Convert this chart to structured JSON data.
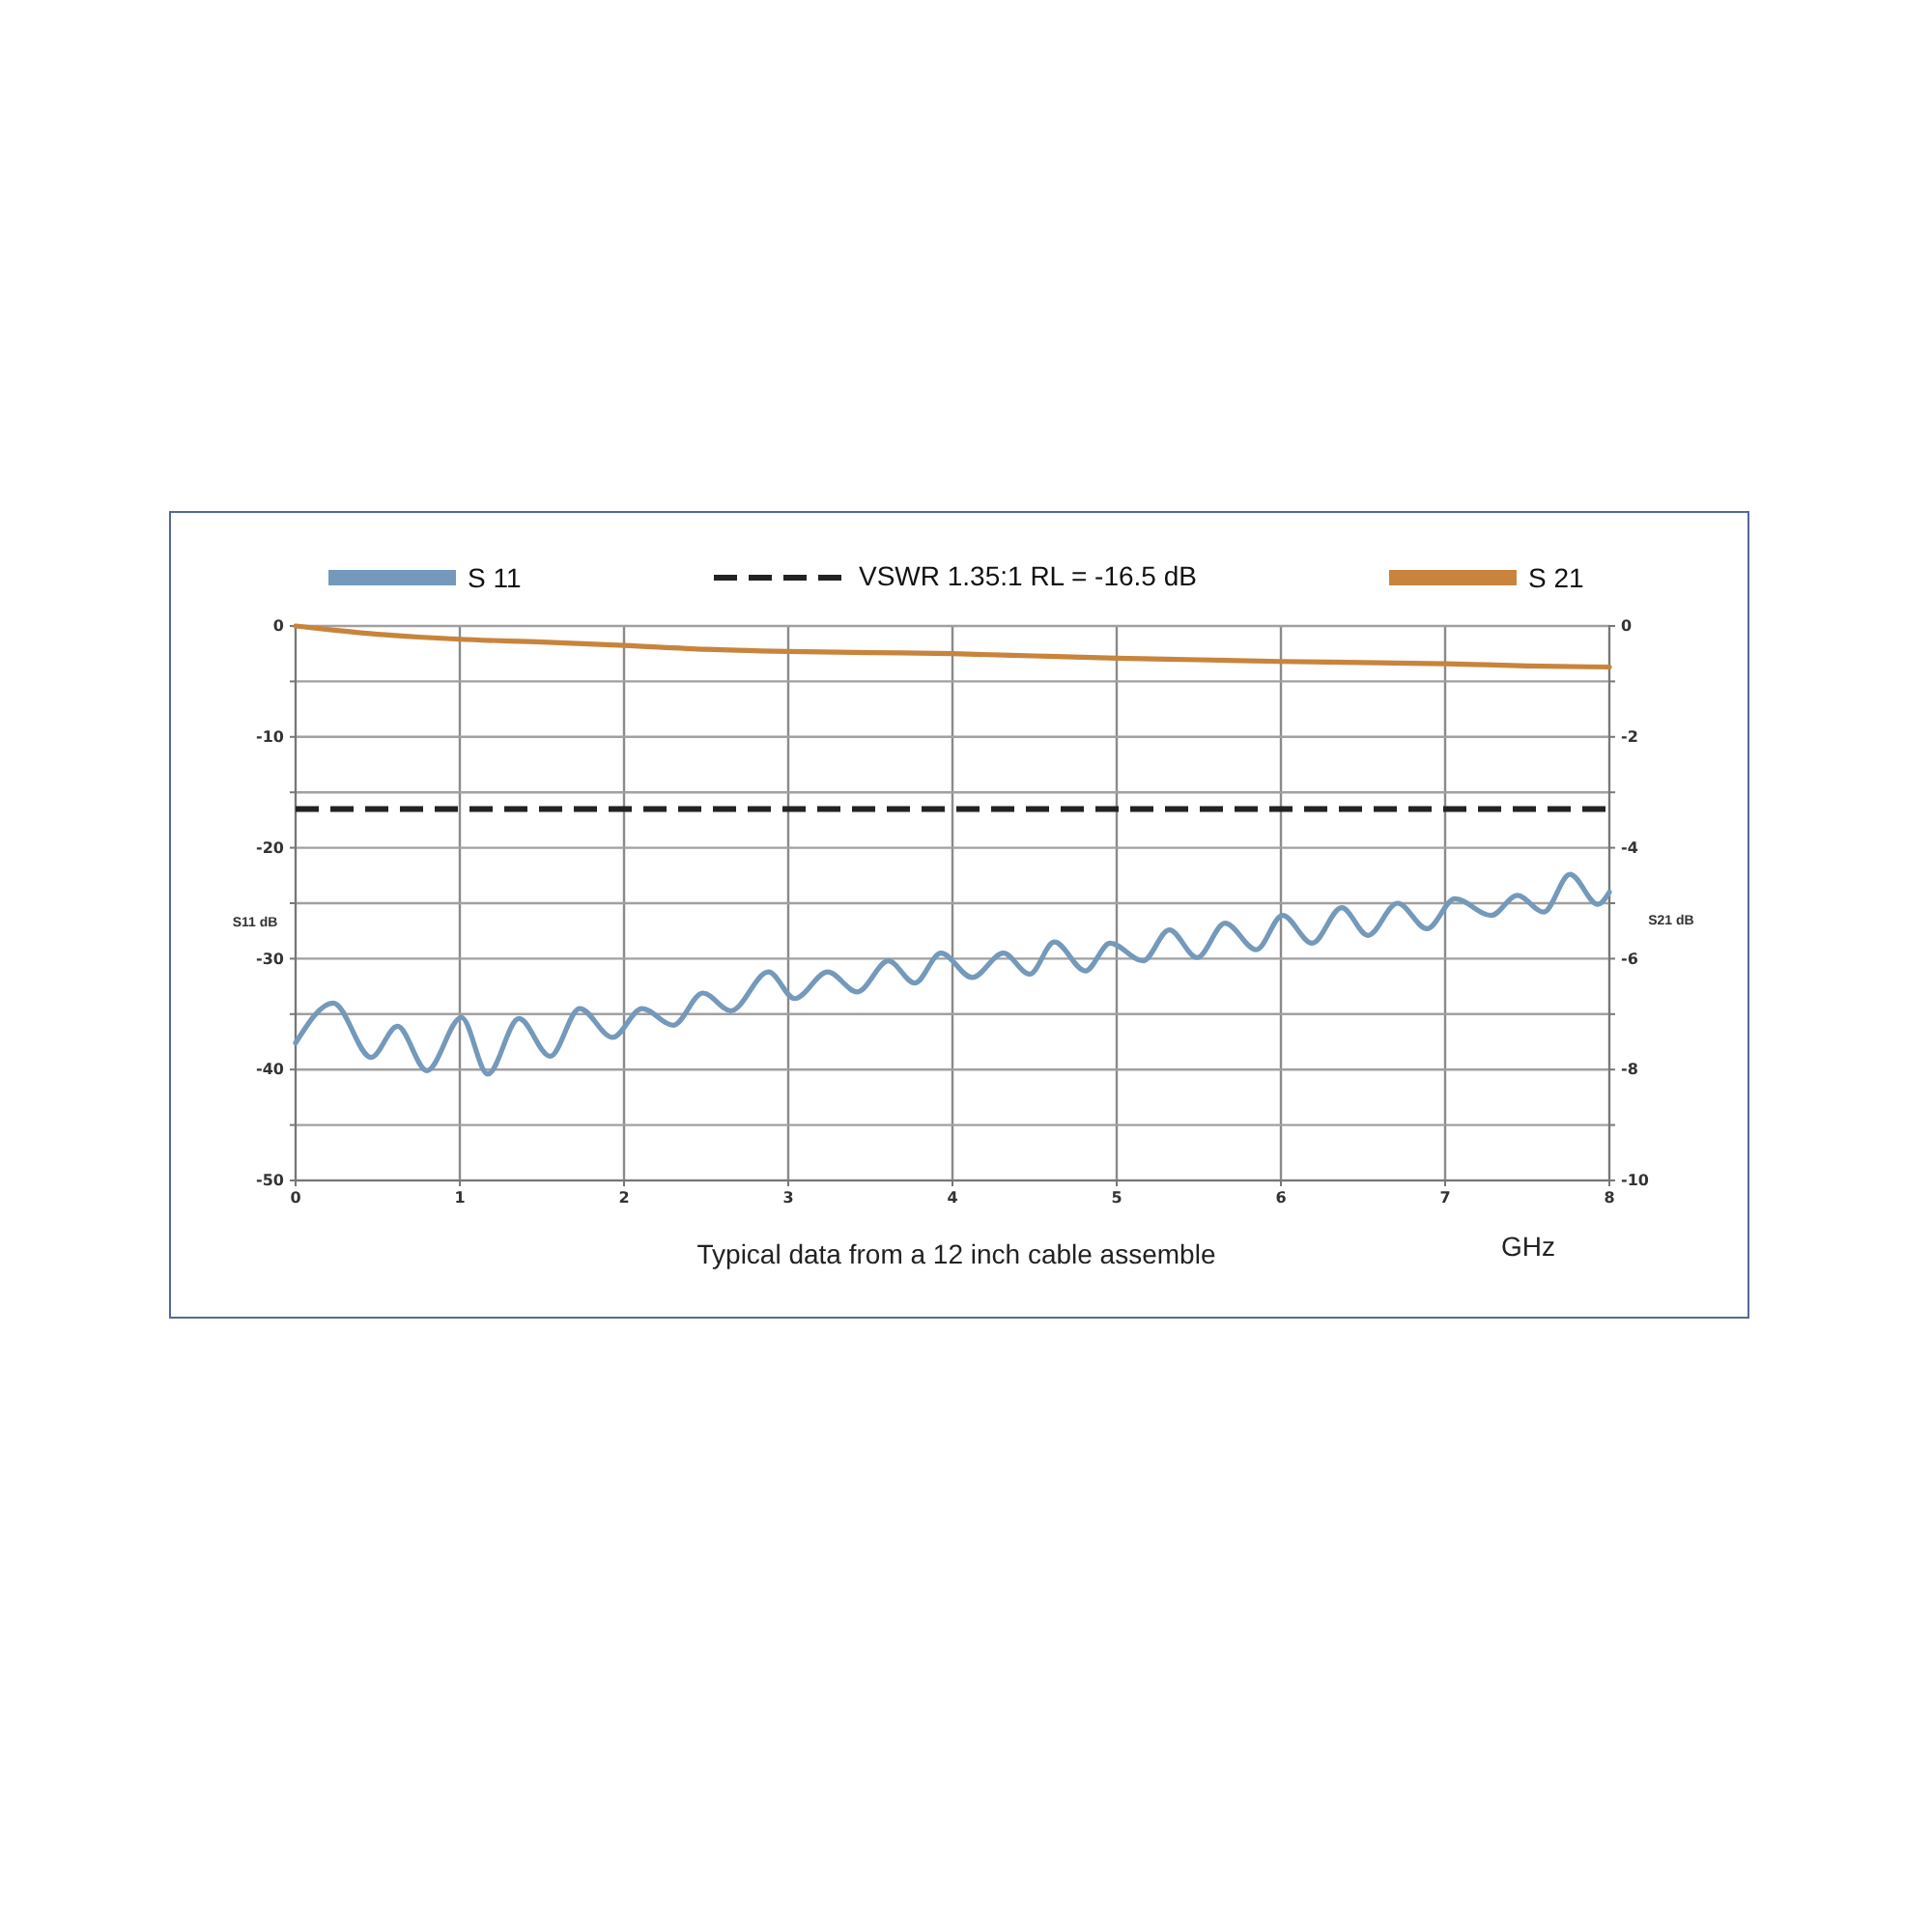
{
  "chart_data": {
    "type": "line",
    "xlabel": "GHz",
    "ylabel": "S11 dB",
    "y2label": "S21 dB",
    "annotations": [
      "Typical data from a 12 inch cable assemble"
    ],
    "xlim": [
      0,
      8
    ],
    "xticks": [
      0,
      1,
      2,
      3,
      4,
      5,
      6,
      7,
      8
    ],
    "ylim": [
      -50,
      0
    ],
    "yticks": [
      0,
      {
        "value": -5,
        "label": null
      },
      -10,
      {
        "value": -15,
        "label": null
      },
      -20,
      {
        "value": -25,
        "label": null
      },
      -30,
      {
        "value": -35,
        "label": null
      },
      -40,
      {
        "value": -45,
        "label": null
      },
      -50
    ],
    "y2lim": [
      -10,
      0
    ],
    "y2ticks": [
      0,
      {
        "value": -1,
        "label": null
      },
      -2,
      {
        "value": -3,
        "label": null
      },
      -4,
      {
        "value": -5,
        "label": null
      },
      -6,
      {
        "value": -7,
        "label": null
      },
      -8,
      {
        "value": -9,
        "label": null
      },
      -10
    ],
    "grid": true,
    "legend": "top",
    "ref_lines": [
      {
        "axis": "y",
        "value": -16.5,
        "label": "VSWR 1.35:1 RL = -16.5 dB",
        "color": "#222222",
        "line_style": "dashed"
      }
    ],
    "series": [
      {
        "name": "S 11",
        "color": "#7499bb",
        "x": [
          0,
          0.23,
          0.46,
          0.62,
          0.8,
          1.01,
          1.17,
          1.36,
          1.55,
          1.73,
          1.93,
          2.11,
          2.3,
          2.48,
          2.65,
          2.88,
          3.04,
          3.24,
          3.42,
          3.61,
          3.77,
          3.93,
          4.12,
          4.31,
          4.47,
          4.62,
          4.81,
          4.96,
          5.16,
          5.32,
          5.49,
          5.66,
          5.85,
          6.01,
          6.19,
          6.37,
          6.53,
          6.71,
          6.89,
          7.06,
          7.28,
          7.44,
          7.6,
          7.76,
          7.93,
          8
        ],
        "values": [
          -37.6,
          -34.0,
          -38.9,
          -36.1,
          -40.1,
          -35.3,
          -40.4,
          -35.4,
          -38.8,
          -34.5,
          -37.1,
          -34.5,
          -36.0,
          -33.1,
          -34.7,
          -31.2,
          -33.6,
          -31.2,
          -33.0,
          -30.2,
          -32.2,
          -29.5,
          -31.7,
          -29.5,
          -31.4,
          -28.5,
          -31.1,
          -28.6,
          -30.2,
          -27.4,
          -29.9,
          -26.8,
          -29.2,
          -26.1,
          -28.6,
          -25.4,
          -27.9,
          -25.0,
          -27.3,
          -24.6,
          -26.1,
          -24.3,
          -25.8,
          -22.4,
          -25.1,
          -24.0
        ]
      },
      {
        "name": "S 21",
        "color": "#c8843c",
        "axis": "y2",
        "x": [
          0,
          0.25,
          0.5,
          0.75,
          1,
          1.5,
          2,
          2.5,
          3,
          3.5,
          4,
          4.5,
          5,
          5.5,
          6,
          6.5,
          7,
          7.5,
          8
        ],
        "values": [
          0,
          -0.08,
          -0.15,
          -0.2,
          -0.24,
          -0.29,
          -0.35,
          -0.42,
          -0.46,
          -0.48,
          -0.5,
          -0.54,
          -0.58,
          -0.61,
          -0.64,
          -0.66,
          -0.68,
          -0.72,
          -0.74
        ]
      }
    ]
  }
}
